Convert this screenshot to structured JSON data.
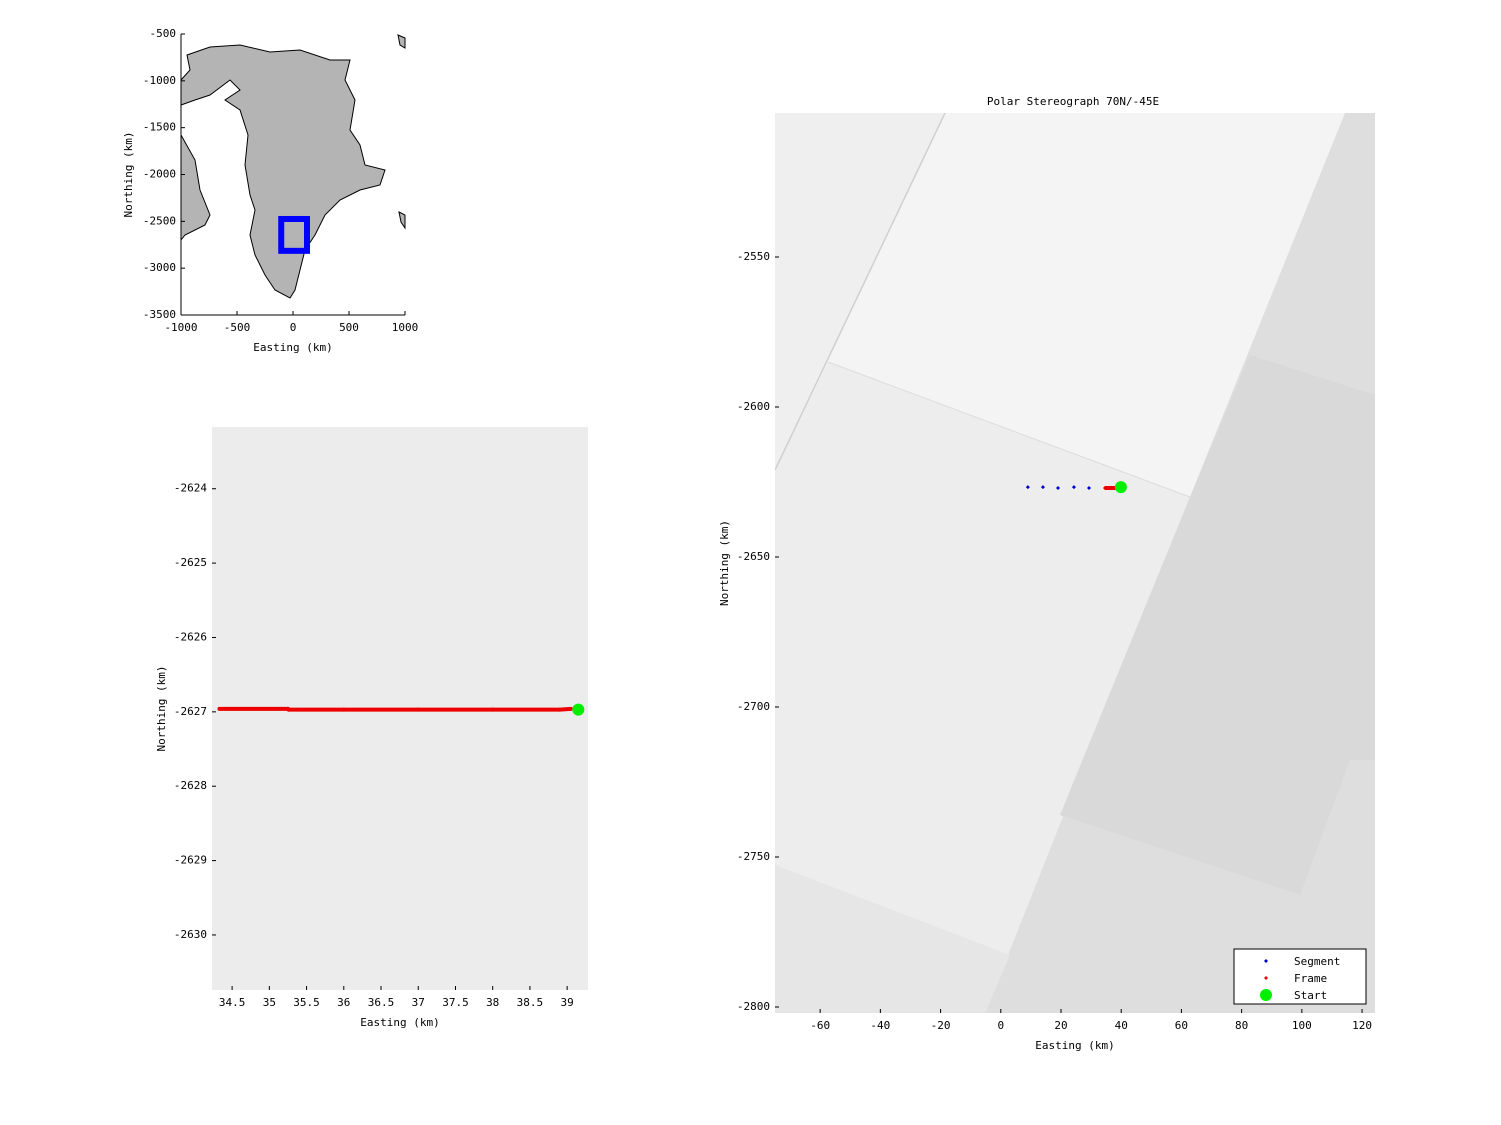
{
  "chart_data": [
    {
      "type": "map",
      "xlabel": "Easting (km)",
      "ylabel": "Northing (km)",
      "xlim": [
        -1000,
        1000
      ],
      "ylim": [
        -3500,
        -500
      ],
      "xticks": [
        -1000,
        -500,
        0,
        500,
        1000
      ],
      "yticks": [
        -3500,
        -3000,
        -2500,
        -2000,
        -1500,
        -1000,
        -500
      ],
      "box_x": [
        -105,
        125
      ],
      "box_y": [
        -2815,
        -2475
      ],
      "box_color": "#0000ff"
    },
    {
      "type": "scatter",
      "xlabel": "Easting (km)",
      "ylabel": "Northing (km)",
      "xlim": [
        34.23,
        39.28
      ],
      "ylim": [
        -2630.74,
        -2623.17
      ],
      "xticks": [
        34.5,
        35,
        35.5,
        36,
        36.5,
        37,
        37.5,
        38,
        38.5,
        39
      ],
      "yticks": [
        -2630,
        -2629,
        -2628,
        -2627,
        -2626,
        -2625,
        -2624
      ],
      "series": [
        {
          "color": "#ee0000",
          "line": true,
          "marker": "circle",
          "size": 2,
          "x": [
            34.33,
            35.25,
            35.26,
            36,
            37,
            38,
            38.9,
            39.05
          ],
          "values": [
            -2626.96,
            -2626.96,
            -2626.97,
            -2626.97,
            -2626.97,
            -2626.97,
            -2626.97,
            -2626.96
          ]
        },
        {
          "color": "#00ee00",
          "line": false,
          "marker": "circle",
          "size": 6,
          "x": [
            39.15
          ],
          "values": [
            -2626.97
          ]
        }
      ]
    },
    {
      "type": "scatter",
      "title": "Polar Stereograph 70N/-45E",
      "xlabel": "Easting (km)",
      "ylabel": "Northing (km)",
      "xlim": [
        -75,
        124.3
      ],
      "ylim": [
        -2802,
        -2502
      ],
      "xticks": [
        -60,
        -40,
        -20,
        0,
        20,
        40,
        60,
        80,
        100,
        120
      ],
      "yticks": [
        -2800,
        -2750,
        -2700,
        -2650,
        -2600,
        -2550
      ],
      "legend": "lower right",
      "series": [
        {
          "name": "Segment",
          "color": "#0000cc",
          "line": false,
          "marker": "diamond",
          "size": 2,
          "x": [
            9.0,
            14.0,
            19.0,
            24.3,
            29.3
          ],
          "values": [
            -2626.7,
            -2626.7,
            -2627.0,
            -2626.7,
            -2627.0
          ]
        },
        {
          "name": "Frame",
          "color": "#ee0000",
          "line": true,
          "marker": "diamond",
          "size": 2,
          "x": [
            34.6,
            36.5,
            38.0
          ],
          "values": [
            -2627.0,
            -2627.0,
            -2627.0
          ]
        },
        {
          "name": "Start",
          "color": "#00ee00",
          "line": false,
          "marker": "circle",
          "size": 6,
          "x": [
            39.9
          ],
          "values": [
            -2626.7
          ]
        }
      ]
    }
  ]
}
